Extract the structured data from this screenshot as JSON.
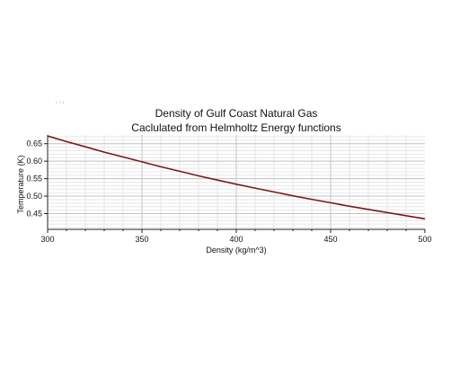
{
  "chart_data": {
    "type": "line",
    "title": "Density of Gulf Coast Natural Gas",
    "subtitle": "Caclulated from Helmholtz Energy functions",
    "xlabel": "Density (kg/m^3)",
    "ylabel": "Temperature (K)",
    "xlim": [
      300,
      500
    ],
    "ylim": [
      0.405,
      0.675
    ],
    "x_ticks": [
      300,
      350,
      400,
      450,
      500
    ],
    "y_ticks": [
      0.45,
      0.5,
      0.55,
      0.6,
      0.65
    ],
    "y_tick_labels": [
      "0.45",
      "0.50",
      "0.55",
      "0.60",
      "0.65"
    ],
    "grid": true,
    "legend": "none",
    "series": [
      {
        "color": "#7a1a1a",
        "x": [
          300,
          310,
          320,
          330,
          340,
          350,
          360,
          370,
          380,
          390,
          400,
          410,
          420,
          430,
          440,
          450,
          460,
          470,
          480,
          490,
          500
        ],
        "y": [
          0.672,
          0.656,
          0.641,
          0.626,
          0.612,
          0.598,
          0.584,
          0.571,
          0.558,
          0.546,
          0.534,
          0.523,
          0.512,
          0.501,
          0.491,
          0.481,
          0.471,
          0.462,
          0.453,
          0.444,
          0.435
        ]
      }
    ]
  },
  "colors": {
    "axis": "#222222",
    "major_grid": "#c4c4c4",
    "minor_grid": "#e6e6e6"
  }
}
